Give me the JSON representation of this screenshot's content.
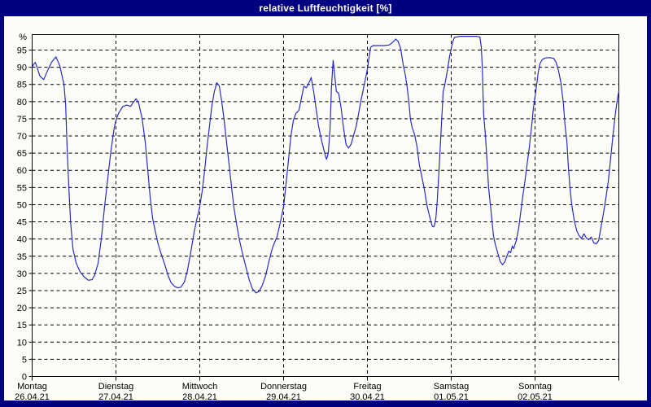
{
  "window": {
    "title": "relative Luftfeuchtigkeit [%]"
  },
  "colors": {
    "window_border": "#000080",
    "title_text": "#ffffff",
    "plot_background": "#fcfdf6",
    "grid": "#000000",
    "line": "#2a2ac8",
    "axis_text": "#000000"
  },
  "chart_data": {
    "type": "line",
    "title": "relative Luftfeuchtigkeit [%]",
    "xlabel": "",
    "ylabel": "%",
    "y_unit": "%",
    "ylim": [
      0,
      100
    ],
    "y_ticks": [
      0,
      5,
      10,
      15,
      20,
      25,
      30,
      35,
      40,
      45,
      50,
      55,
      60,
      65,
      70,
      75,
      80,
      85,
      90,
      95
    ],
    "grid": true,
    "legend": "none",
    "x_unit": "hours from Montag 00:00",
    "xlim_hours": [
      0,
      168
    ],
    "x_gridlines_hours": [
      24,
      48,
      72,
      96,
      120,
      144
    ],
    "x_tick_hours": [
      0,
      24,
      48,
      72,
      96,
      120,
      144,
      168
    ],
    "x_axis": {
      "days": [
        {
          "name": "Montag",
          "date": "26.04.21"
        },
        {
          "name": "Dienstag",
          "date": "27.04.21"
        },
        {
          "name": "Mittwoch",
          "date": "28.04.21"
        },
        {
          "name": "Donnerstag",
          "date": "29.04.21"
        },
        {
          "name": "Freitag",
          "date": "30.04.21"
        },
        {
          "name": "Samstag",
          "date": "01.05.21"
        },
        {
          "name": "Sonntag",
          "date": "02.05.21"
        }
      ]
    },
    "series": [
      {
        "name": "relative Luftfeuchtigkeit",
        "points": [
          [
            0,
            90
          ],
          [
            0.5,
            91
          ],
          [
            0.9,
            91.4
          ],
          [
            1.4,
            90
          ],
          [
            2.2,
            87.5
          ],
          [
            3.3,
            86.4
          ],
          [
            4.4,
            89
          ],
          [
            5.6,
            91.5
          ],
          [
            6.8,
            93
          ],
          [
            7.9,
            90.5
          ],
          [
            9.1,
            85
          ],
          [
            9.6,
            79
          ],
          [
            10,
            67
          ],
          [
            10.5,
            55
          ],
          [
            11,
            45
          ],
          [
            11.7,
            37
          ],
          [
            12.6,
            33
          ],
          [
            13.7,
            30.5
          ],
          [
            14.9,
            29
          ],
          [
            16.1,
            28
          ],
          [
            17.2,
            28.2
          ],
          [
            17.9,
            29.5
          ],
          [
            18.9,
            33
          ],
          [
            19.8,
            40
          ],
          [
            20.7,
            49
          ],
          [
            21.7,
            58
          ],
          [
            22.6,
            66
          ],
          [
            23.5,
            72.5
          ],
          [
            24,
            74.5
          ],
          [
            24.7,
            76.5
          ],
          [
            25.9,
            78.5
          ],
          [
            27,
            79
          ],
          [
            28.2,
            78.6
          ],
          [
            29.1,
            80
          ],
          [
            29.8,
            80.8
          ],
          [
            30.5,
            79.5
          ],
          [
            31.5,
            75
          ],
          [
            32.4,
            68
          ],
          [
            33.1,
            60
          ],
          [
            33.8,
            52
          ],
          [
            34.5,
            46
          ],
          [
            35.2,
            42.5
          ],
          [
            36.1,
            38.5
          ],
          [
            37,
            35.5
          ],
          [
            38,
            32.5
          ],
          [
            38.9,
            29.5
          ],
          [
            39.8,
            27.3
          ],
          [
            40.8,
            26.2
          ],
          [
            41.7,
            25.8
          ],
          [
            42.6,
            26
          ],
          [
            43.6,
            27.5
          ],
          [
            44.5,
            31
          ],
          [
            45.4,
            36
          ],
          [
            46.4,
            42
          ],
          [
            47.1,
            45.5
          ],
          [
            47.8,
            48.5
          ],
          [
            48,
            49.5
          ],
          [
            48.7,
            54
          ],
          [
            49.4,
            60
          ],
          [
            50.1,
            67
          ],
          [
            50.8,
            73
          ],
          [
            51.5,
            79
          ],
          [
            52.2,
            83
          ],
          [
            52.9,
            85.5
          ],
          [
            53.6,
            84.5
          ],
          [
            54.3,
            80
          ],
          [
            55,
            74.5
          ],
          [
            55.7,
            68
          ],
          [
            56.4,
            61.5
          ],
          [
            57.1,
            55
          ],
          [
            57.8,
            49
          ],
          [
            58.5,
            44.5
          ],
          [
            59.4,
            39.5
          ],
          [
            60.3,
            35.5
          ],
          [
            61.3,
            31.5
          ],
          [
            62.2,
            28
          ],
          [
            63.1,
            25.5
          ],
          [
            64.1,
            24.3
          ],
          [
            65,
            24.8
          ],
          [
            65.9,
            26.5
          ],
          [
            66.9,
            29.5
          ],
          [
            67.8,
            33.5
          ],
          [
            68.7,
            37
          ],
          [
            69.4,
            39
          ],
          [
            70.1,
            40.5
          ],
          [
            71.1,
            45
          ],
          [
            72,
            49.5
          ],
          [
            72.7,
            56
          ],
          [
            73.4,
            63
          ],
          [
            74.1,
            70
          ],
          [
            74.8,
            74.5
          ],
          [
            75.5,
            76.5
          ],
          [
            76.4,
            77.5
          ],
          [
            77.1,
            81
          ],
          [
            77.8,
            84.5
          ],
          [
            78.5,
            84
          ],
          [
            79.5,
            86
          ],
          [
            79.9,
            87
          ],
          [
            80.6,
            83
          ],
          [
            81.3,
            78
          ],
          [
            82,
            73
          ],
          [
            82.7,
            69.5
          ],
          [
            83.4,
            66.5
          ],
          [
            84.1,
            63.8
          ],
          [
            84.3,
            63.2
          ],
          [
            84.8,
            65
          ],
          [
            85.3,
            72
          ],
          [
            85.7,
            84
          ],
          [
            86.2,
            92
          ],
          [
            86.7,
            87
          ],
          [
            87.1,
            83
          ],
          [
            87.8,
            82.3
          ],
          [
            88.5,
            78
          ],
          [
            89,
            73.5
          ],
          [
            89.5,
            70
          ],
          [
            89.9,
            67.5
          ],
          [
            90.6,
            66.5
          ],
          [
            91.3,
            67.5
          ],
          [
            92,
            70
          ],
          [
            92.7,
            72.5
          ],
          [
            93.4,
            76
          ],
          [
            94.1,
            80
          ],
          [
            94.8,
            83.5
          ],
          [
            95.5,
            87
          ],
          [
            96,
            89.5
          ],
          [
            96.5,
            93
          ],
          [
            96.9,
            95.8
          ],
          [
            97.6,
            96.3
          ],
          [
            99.3,
            96.3
          ],
          [
            100.9,
            96.3
          ],
          [
            102.3,
            96.5
          ],
          [
            103.5,
            97.5
          ],
          [
            104.1,
            98.2
          ],
          [
            104.8,
            97.5
          ],
          [
            105.5,
            95.5
          ],
          [
            106.2,
            91
          ],
          [
            106.9,
            87.5
          ],
          [
            107.4,
            84
          ],
          [
            107.9,
            79.5
          ],
          [
            108.3,
            75
          ],
          [
            108.8,
            72.5
          ],
          [
            109.5,
            70.5
          ],
          [
            110.2,
            67
          ],
          [
            110.9,
            61.5
          ],
          [
            111.6,
            58
          ],
          [
            112.3,
            54.5
          ],
          [
            113,
            50
          ],
          [
            113.7,
            47
          ],
          [
            114.2,
            45
          ],
          [
            114.6,
            43.7
          ],
          [
            115.1,
            43.6
          ],
          [
            115.6,
            46
          ],
          [
            116,
            51
          ],
          [
            116.5,
            60
          ],
          [
            117,
            69.5
          ],
          [
            117.4,
            77
          ],
          [
            117.7,
            83
          ],
          [
            118.1,
            84.5
          ],
          [
            118.8,
            88.5
          ],
          [
            119.5,
            93
          ],
          [
            120,
            95.5
          ],
          [
            120.5,
            97.5
          ],
          [
            120.9,
            98.7
          ],
          [
            122.6,
            99
          ],
          [
            124.9,
            99
          ],
          [
            127.2,
            99
          ],
          [
            128.2,
            98.8
          ],
          [
            128.6,
            96
          ],
          [
            128.9,
            90
          ],
          [
            129.1,
            82
          ],
          [
            129.3,
            76
          ],
          [
            129.8,
            70
          ],
          [
            130.2,
            63.5
          ],
          [
            130.7,
            55
          ],
          [
            131.2,
            50
          ],
          [
            131.6,
            46
          ],
          [
            132.1,
            41
          ],
          [
            132.6,
            38.5
          ],
          [
            133.3,
            36
          ],
          [
            134,
            33.5
          ],
          [
            134.7,
            32.5
          ],
          [
            135.4,
            33.5
          ],
          [
            136.1,
            35.5
          ],
          [
            136.5,
            36.5
          ],
          [
            137,
            36
          ],
          [
            137.5,
            38
          ],
          [
            137.9,
            37.2
          ],
          [
            138.6,
            39.5
          ],
          [
            139.3,
            43
          ],
          [
            139.8,
            47
          ],
          [
            140.3,
            51
          ],
          [
            141,
            56
          ],
          [
            141.7,
            61.5
          ],
          [
            142.4,
            67
          ],
          [
            143.1,
            73.5
          ],
          [
            143.5,
            78
          ],
          [
            144,
            81.5
          ],
          [
            144.5,
            85
          ],
          [
            144.9,
            88.5
          ],
          [
            145.4,
            91
          ],
          [
            146.1,
            92.3
          ],
          [
            147,
            92.7
          ],
          [
            148.2,
            92.8
          ],
          [
            149.3,
            92.6
          ],
          [
            150,
            91.5
          ],
          [
            150.7,
            89
          ],
          [
            151.4,
            85.5
          ],
          [
            152.1,
            79.5
          ],
          [
            152.6,
            73
          ],
          [
            153.1,
            68.5
          ],
          [
            153.5,
            61.5
          ],
          [
            154,
            55
          ],
          [
            154.5,
            50
          ],
          [
            155.2,
            45.5
          ],
          [
            155.9,
            42.5
          ],
          [
            156.6,
            41
          ],
          [
            157.3,
            40.2
          ],
          [
            158,
            41.5
          ],
          [
            158.7,
            40.3
          ],
          [
            159.4,
            39.8
          ],
          [
            160.1,
            40.6
          ],
          [
            160.8,
            38.9
          ],
          [
            161.5,
            38.6
          ],
          [
            162.2,
            39.5
          ],
          [
            162.9,
            43.5
          ],
          [
            163.6,
            47.5
          ],
          [
            164.3,
            52
          ],
          [
            165,
            57
          ],
          [
            165.6,
            63
          ],
          [
            166.3,
            70
          ],
          [
            167,
            76.5
          ],
          [
            167.7,
            81.5
          ],
          [
            168,
            83
          ]
        ]
      }
    ]
  }
}
